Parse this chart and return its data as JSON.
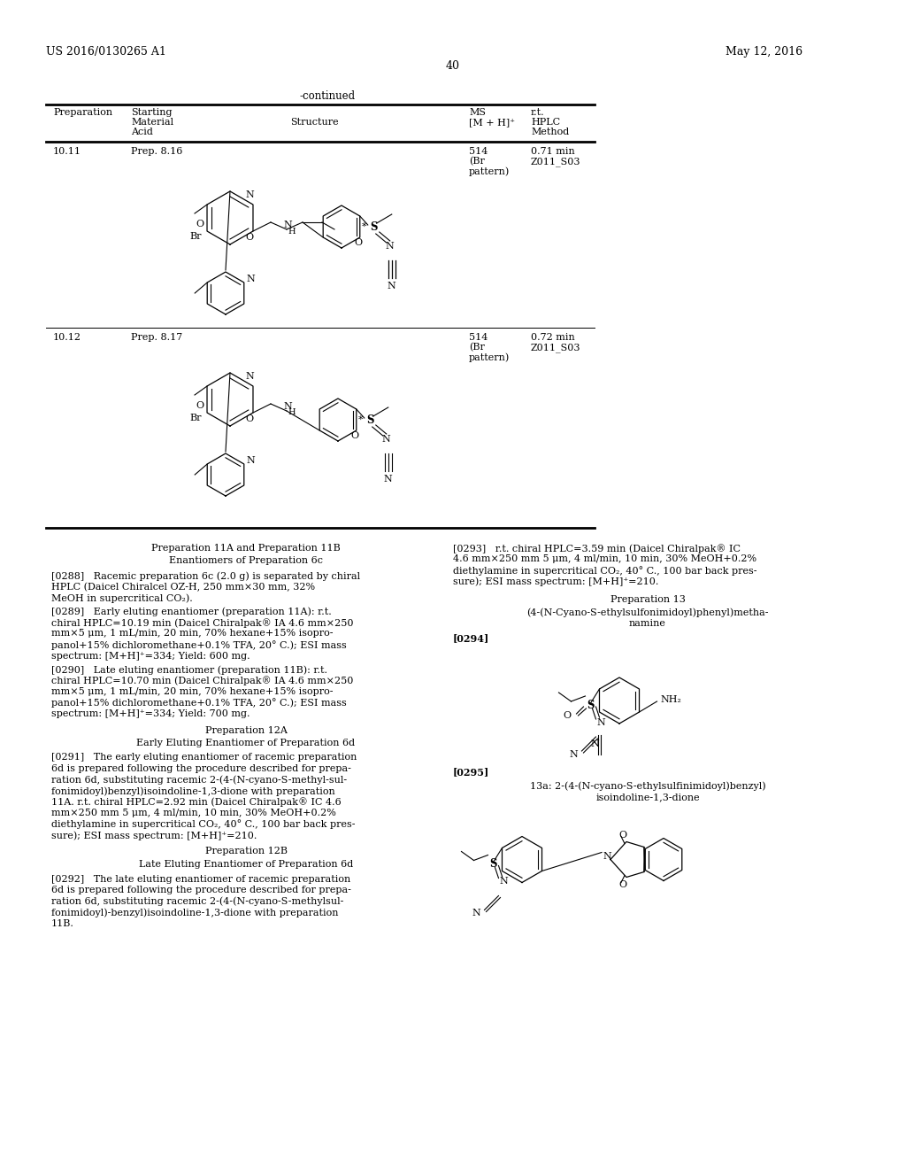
{
  "patent_number": "US 2016/0130265 A1",
  "date": "May 12, 2016",
  "page_number": "40",
  "continued_label": "-continued",
  "row1_prep": "10.11",
  "row1_material": "Prep. 8.16",
  "row1_ms1": "514",
  "row1_ms2": "(Br",
  "row1_ms3": "pattern)",
  "row1_hplc1": "0.71 min",
  "row1_hplc2": "Z011_S03",
  "row2_prep": "10.12",
  "row2_material": "Prep. 8.17",
  "row2_ms1": "514",
  "row2_ms2": "(Br",
  "row2_ms3": "pattern)",
  "row2_hplc1": "0.72 min",
  "row2_hplc2": "Z011_S03",
  "s1_title": "Preparation 11A and Preparation 11B",
  "s1_sub": "Enantiomers of Preparation 6c",
  "p288": "[0288]   Racemic preparation 6c (2.0 g) is separated by chiral\nHPLC (Daicel Chiralcel OZ-H, 250 mm×30 mm, 32%\nMeOH in supercritical CO₂).",
  "p289": "[0289]   Early eluting enantiomer (preparation 11A): r.t.\nchiral HPLC=10.19 min (Daicel Chiralpak® IA 4.6 mm×250\nmm×5 μm, 1 mL/min, 20 min, 70% hexane+15% isopro-\npanol+15% dichloromethane+0.1% TFA, 20° C.); ESI mass\nspectrum: [M+H]⁺=334; Yield: 600 mg.",
  "p290": "[0290]   Late eluting enantiomer (preparation 11B): r.t.\nchiral HPLC=10.70 min (Daicel Chiralpak® IA 4.6 mm×250\nmm×5 μm, 1 mL/min, 20 min, 70% hexane+15% isopro-\npanol+15% dichloromethane+0.1% TFA, 20° C.); ESI mass\nspectrum: [M+H]⁺=334; Yield: 700 mg.",
  "s2_title": "Preparation 12A",
  "s2_sub": "Early Eluting Enantiomer of Preparation 6d",
  "p291": "[0291]   The early eluting enantiomer of racemic preparation\n6d is prepared following the procedure described for prepa-\nration 6d, substituting racemic 2-(4-(N-cyano-S-methyl-sul-\nfonimidoyl)benzyl)isoindoline-1,3-dione with preparation\n11A. r.t. chiral HPLC=2.92 min (Daicel Chiralpak® IC 4.6\nmm×250 mm 5 μm, 4 ml/min, 10 min, 30% MeOH+0.2%\ndiethylamine in supercritical CO₂, 40° C., 100 bar back pres-\nsure); ESI mass spectrum: [M+H]⁺=210.",
  "s3_title": "Preparation 12B",
  "s3_sub": "Late Eluting Enantiomer of Preparation 6d",
  "p292": "[0292]   The late eluting enantiomer of racemic preparation\n6d is prepared following the procedure described for prepa-\nration 6d, substituting racemic 2-(4-(N-cyano-S-methylsul-\nfonimidoyl)-benzyl)isoindoline-1,3-dione with preparation\n11B.",
  "p293": "[0293]   r.t. chiral HPLC=3.59 min (Daicel Chiralpak® IC\n4.6 mm×250 mm 5 μm, 4 ml/min, 10 min, 30% MeOH+0.2%\ndiethylamine in supercritical CO₂, 40° C., 100 bar back pres-\nsure); ESI mass spectrum: [M+H]⁺=210.",
  "s4_title": "Preparation 13",
  "s4_sub1": "(4-(N-Cyano-S-ethylsulfonimidoyl)phenyl)metha-",
  "s4_sub2": "namine",
  "p294": "[0294]",
  "p295": "[0295]",
  "s5_title1": "13a: 2-(4-(N-cyano-S-ethylsulfinimidoyl)benzyl)",
  "s5_title2": "isoindoline-1,3-dione",
  "bg_color": "#ffffff",
  "text_color": "#000000"
}
